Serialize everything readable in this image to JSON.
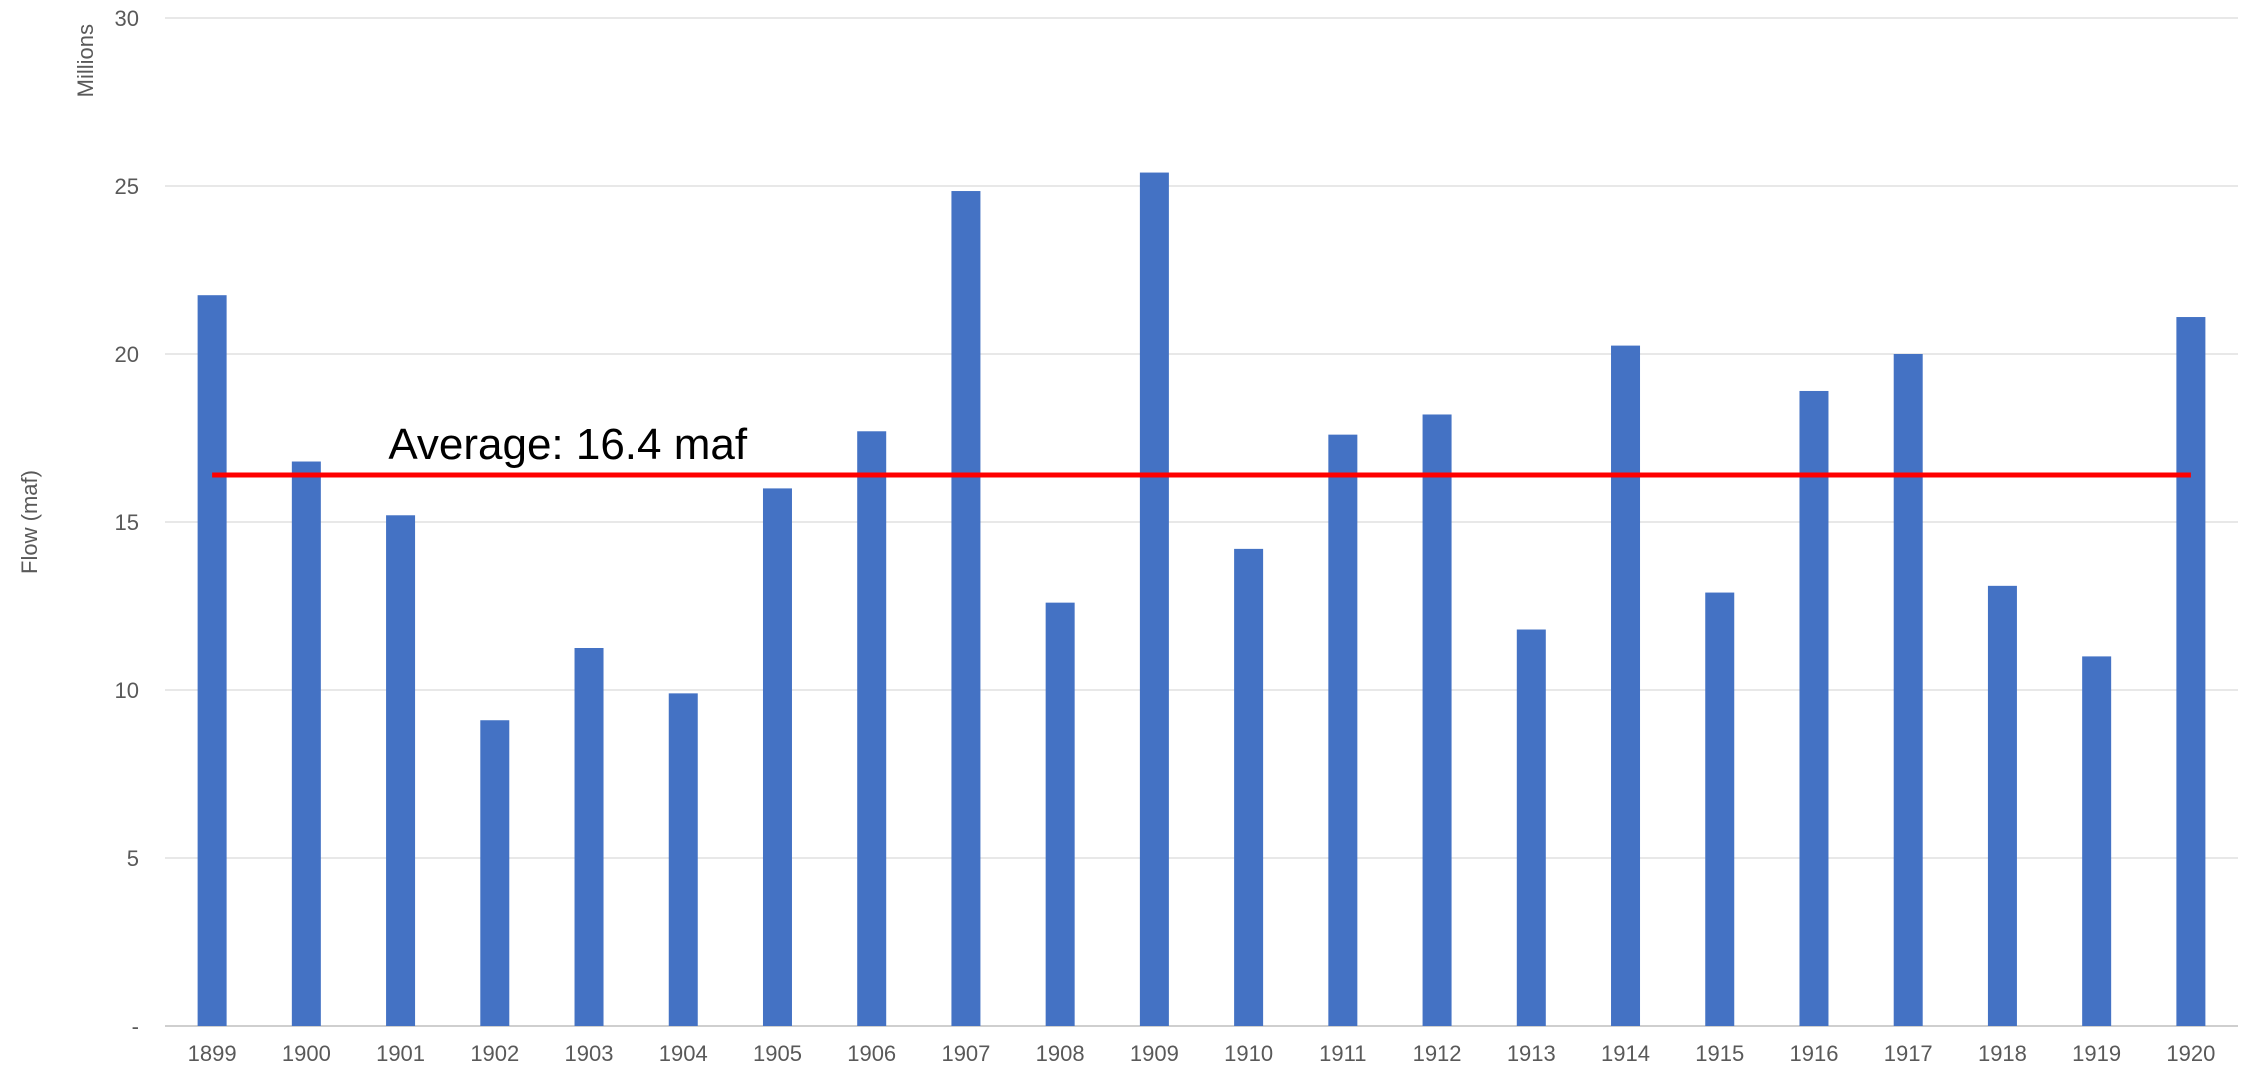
{
  "chart_data": {
    "type": "bar",
    "title": "",
    "xlabel": "",
    "ylabel": "Flow (maf)",
    "y_unit_label": "Millions",
    "ylim": [
      0,
      30
    ],
    "y_ticks": [
      0,
      5,
      10,
      15,
      20,
      25,
      30
    ],
    "y_tick_labels": [
      "-",
      "5",
      "10",
      "15",
      "20",
      "25",
      "30"
    ],
    "grid": true,
    "legend": "none",
    "categories": [
      "1899",
      "1900",
      "1901",
      "1902",
      "1903",
      "1904",
      "1905",
      "1906",
      "1907",
      "1908",
      "1909",
      "1910",
      "1911",
      "1912",
      "1913",
      "1914",
      "1915",
      "1916",
      "1917",
      "1918",
      "1919",
      "1920"
    ],
    "series": [
      {
        "values": [
          21.75,
          16.8,
          15.2,
          9.1,
          11.25,
          9.9,
          16.0,
          17.7,
          24.85,
          12.6,
          25.4,
          14.2,
          17.6,
          18.2,
          11.8,
          20.25,
          12.9,
          18.9,
          20.0,
          13.1,
          11.0,
          21.1
        ],
        "color": "#4472C4"
      }
    ],
    "average_line": {
      "value": 16.4,
      "label": "Average: 16.4 maf",
      "color": "#FF0000"
    },
    "colors": {
      "grid": "#D9D9D9",
      "axis": "#BFBFBF",
      "tick_text": "#595959"
    }
  }
}
